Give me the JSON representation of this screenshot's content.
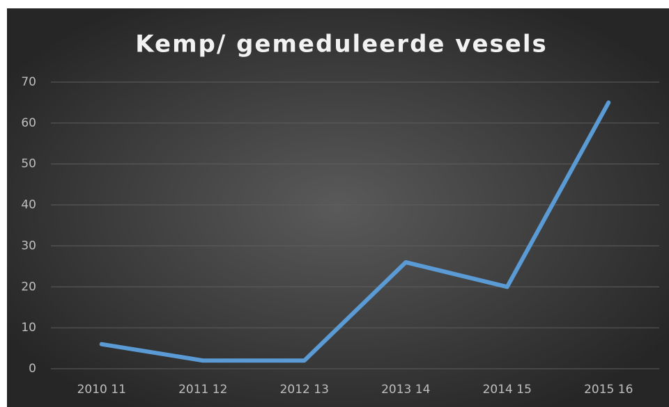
{
  "chart_data": {
    "type": "line",
    "title": "Kemp/ gemeduleerde vesels",
    "categories": [
      "2010 11",
      "2011 12",
      "2012 13",
      "2013 14",
      "2014 15",
      "2015 16"
    ],
    "values": [
      6,
      2,
      2,
      26,
      20,
      65
    ],
    "color": "#5b9bd5",
    "ylim": [
      0,
      70
    ],
    "yticks": [
      0,
      10,
      20,
      30,
      40,
      50,
      60,
      70
    ],
    "grid": true
  }
}
